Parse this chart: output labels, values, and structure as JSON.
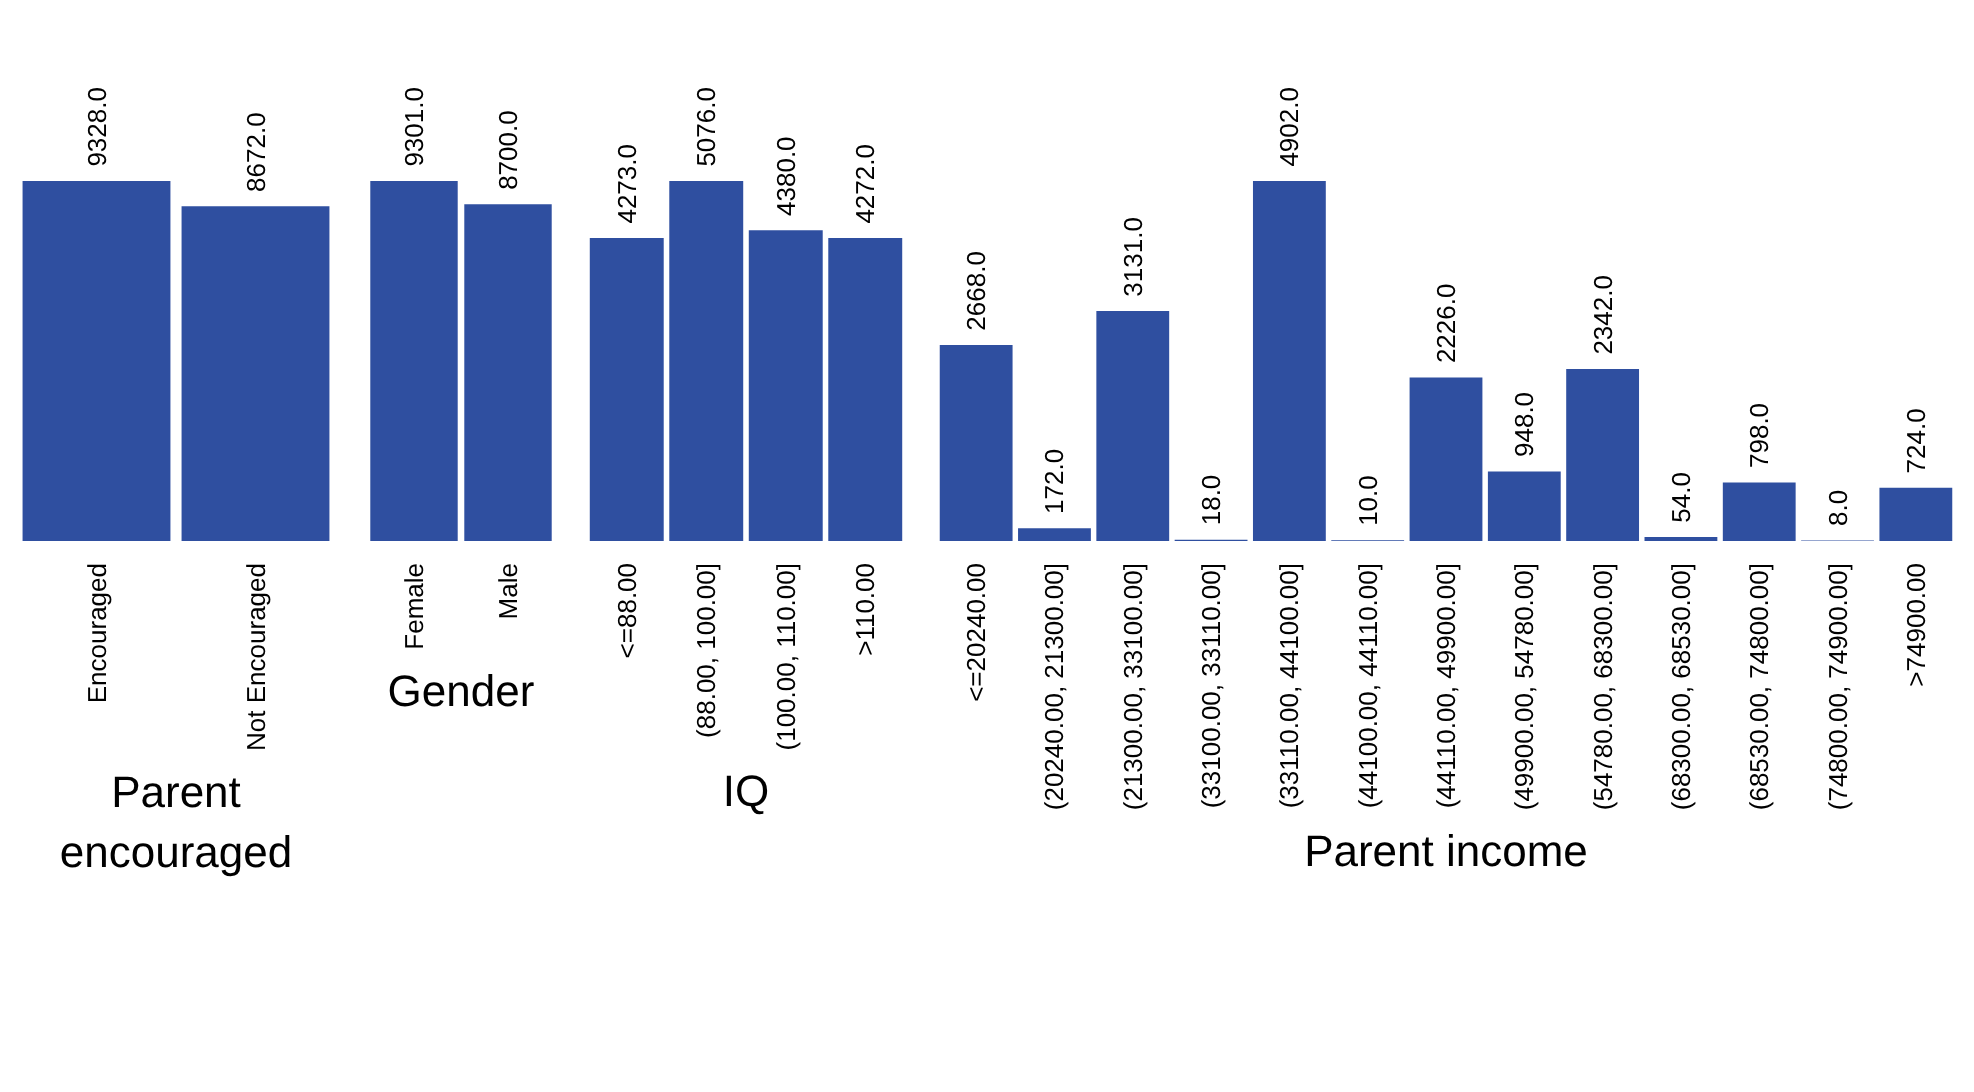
{
  "chart_data": [
    {
      "type": "bar",
      "xlabel": "Parent\nencouraged",
      "categories": [
        "Encouraged",
        "Not Encouraged"
      ],
      "values": [
        9328,
        8672
      ],
      "value_labels": [
        "9328.0",
        "8672.0"
      ],
      "color": "#2f4fa0"
    },
    {
      "type": "bar",
      "xlabel": "Gender",
      "categories": [
        "Female",
        "Male"
      ],
      "values": [
        9301,
        8700
      ],
      "value_labels": [
        "9301.0",
        "8700.0"
      ],
      "color": "#2f4fa0"
    },
    {
      "type": "bar",
      "xlabel": "IQ",
      "categories": [
        "<=88.00",
        "(88.00, 100.00]",
        "(100.00, 110.00]",
        ">110.00"
      ],
      "values": [
        4273,
        5076,
        4380,
        4272
      ],
      "value_labels": [
        "4273.0",
        "5076.0",
        "4380.0",
        "4272.0"
      ],
      "color": "#2f4fa0"
    },
    {
      "type": "bar",
      "xlabel": "Parent income",
      "categories": [
        "<=20240.00",
        "(20240.00, 21300.00]",
        "(21300.00, 33100.00]",
        "(33100.00, 33110.00]",
        "(33110.00, 44100.00]",
        "(44100.00, 44110.00]",
        "(44110.00, 49900.00]",
        "(49900.00, 54780.00]",
        "(54780.00, 68300.00]",
        "(68300.00, 68530.00]",
        "(68530.00, 74800.00]",
        "(74800.00, 74900.00]",
        ">74900.00"
      ],
      "values": [
        2668,
        172,
        3131,
        18,
        4902,
        10,
        2226,
        948,
        2342,
        54,
        798,
        8,
        724
      ],
      "value_labels": [
        "2668.0",
        "172.0",
        "3131.0",
        "18.0",
        "4902.0",
        "10.0",
        "2226.0",
        "948.0",
        "2342.0",
        "54.0",
        "798.0",
        "8.0",
        "724.0"
      ],
      "color": "#2f4fa0"
    }
  ]
}
